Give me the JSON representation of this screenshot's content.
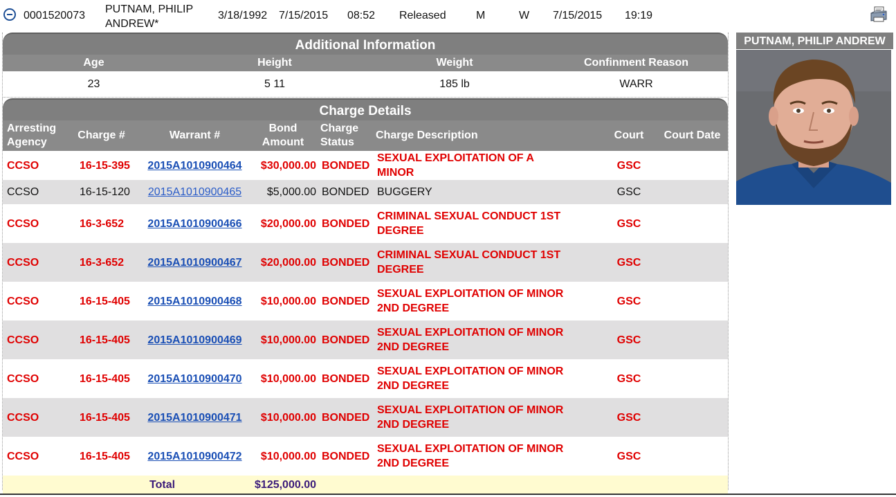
{
  "summary": {
    "booking_number": "0001520073",
    "name_line1": "PUTNAM, PHILIP",
    "name_line2": "ANDREW*",
    "dob": "3/18/1992",
    "booking_date": "7/15/2015",
    "booking_time": "08:52",
    "status": "Released",
    "sex": "M",
    "race": "W",
    "release_date": "7/15/2015",
    "release_time": "19:19",
    "collapse_icon": "minus-circle-icon",
    "print_icon": "printer-icon"
  },
  "additional_info": {
    "title": "Additional Information",
    "headers": [
      "Age",
      "Height",
      "Weight",
      "Confinment Reason"
    ],
    "values": [
      "23",
      "5 11",
      "185 lb",
      "WARR"
    ]
  },
  "charge_details": {
    "title": "Charge Details",
    "headers": {
      "agency": "Arresting Agency",
      "charge": "Charge #",
      "warrant": "Warrant #",
      "bond": "Bond Amount",
      "status": "Charge Status",
      "description": "Charge Description",
      "court": "Court",
      "court_date": "Court Date"
    },
    "rows": [
      {
        "agency": "CCSO",
        "charge": "16-15-395",
        "warrant": "2015A1010900464",
        "bond": "$30,000.00",
        "status": "BONDED",
        "description": "SEXUAL EXPLOITATION OF A MINOR",
        "court": "GSC",
        "court_date": "",
        "style": "red"
      },
      {
        "agency": "CCSO",
        "charge": "16-15-120",
        "warrant": "2015A1010900465",
        "bond": "$5,000.00",
        "status": "BONDED",
        "description": "BUGGERY",
        "court": "GSC",
        "court_date": "",
        "style": "plain"
      },
      {
        "agency": "CCSO",
        "charge": "16-3-652",
        "warrant": "2015A1010900466",
        "bond": "$20,000.00",
        "status": "BONDED",
        "description": "CRIMINAL SEXUAL CONDUCT 1ST DEGREE",
        "court": "GSC",
        "court_date": "",
        "style": "red"
      },
      {
        "agency": "CCSO",
        "charge": "16-3-652",
        "warrant": "2015A1010900467",
        "bond": "$20,000.00",
        "status": "BONDED",
        "description": "CRIMINAL SEXUAL CONDUCT 1ST DEGREE",
        "court": "GSC",
        "court_date": "",
        "style": "red"
      },
      {
        "agency": "CCSO",
        "charge": "16-15-405",
        "warrant": "2015A1010900468",
        "bond": "$10,000.00",
        "status": "BONDED",
        "description": "SEXUAL EXPLOITATION OF MINOR 2ND DEGREE",
        "court": "GSC",
        "court_date": "",
        "style": "red"
      },
      {
        "agency": "CCSO",
        "charge": "16-15-405",
        "warrant": "2015A1010900469",
        "bond": "$10,000.00",
        "status": "BONDED",
        "description": "SEXUAL EXPLOITATION OF MINOR 2ND DEGREE",
        "court": "GSC",
        "court_date": "",
        "style": "red"
      },
      {
        "agency": "CCSO",
        "charge": "16-15-405",
        "warrant": "2015A1010900470",
        "bond": "$10,000.00",
        "status": "BONDED",
        "description": "SEXUAL EXPLOITATION OF MINOR 2ND DEGREE",
        "court": "GSC",
        "court_date": "",
        "style": "red"
      },
      {
        "agency": "CCSO",
        "charge": "16-15-405",
        "warrant": "2015A1010900471",
        "bond": "$10,000.00",
        "status": "BONDED",
        "description": "SEXUAL EXPLOITATION OF MINOR 2ND DEGREE",
        "court": "GSC",
        "court_date": "",
        "style": "red"
      },
      {
        "agency": "CCSO",
        "charge": "16-15-405",
        "warrant": "2015A1010900472",
        "bond": "$10,000.00",
        "status": "BONDED",
        "description": "SEXUAL EXPLOITATION OF MINOR 2ND DEGREE",
        "court": "GSC",
        "court_date": "",
        "style": "red"
      }
    ],
    "total_label": "Total",
    "total_amount": "$125,000.00"
  },
  "photo_panel": {
    "name": "PUTNAM, PHILIP ANDREW",
    "photo_icon": "mugshot-photo"
  }
}
